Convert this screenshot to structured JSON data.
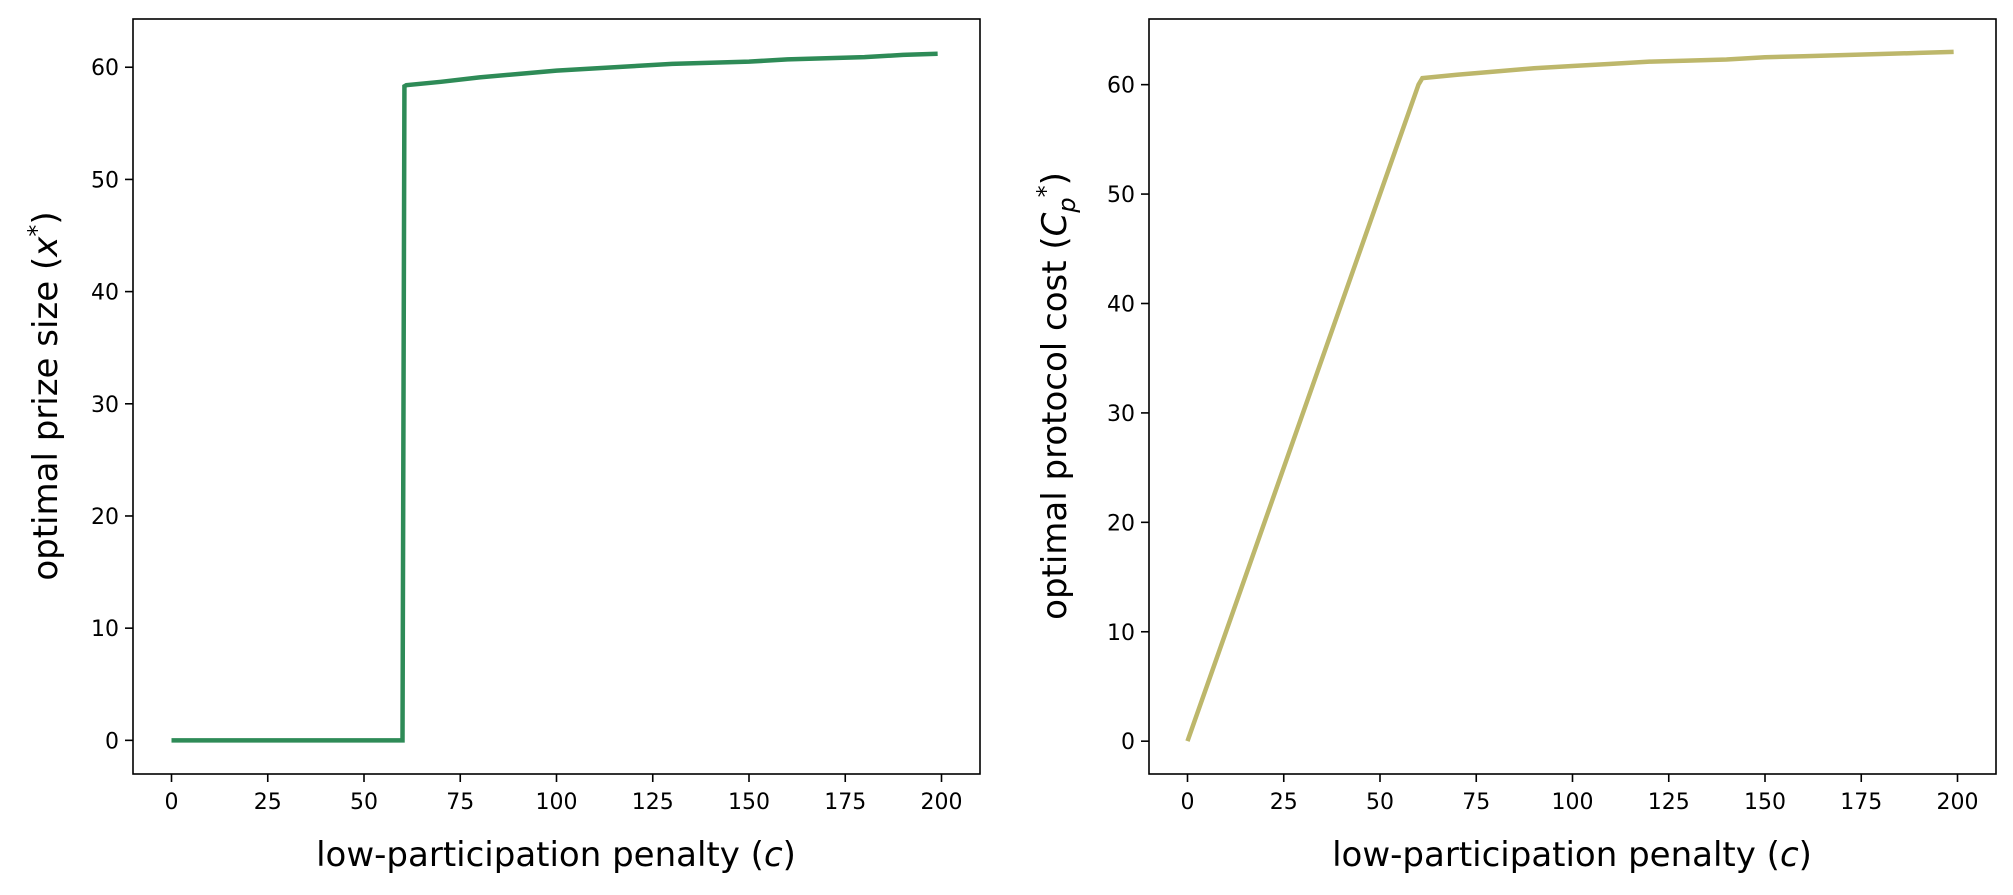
{
  "chart_data": [
    {
      "type": "line",
      "xlabel": "low-participation penalty (c)",
      "ylabel": "optimal prize size (x*)",
      "xlim": [
        -10,
        210
      ],
      "ylim": [
        -3,
        64.3
      ],
      "xticks": [
        0,
        25,
        50,
        75,
        100,
        125,
        150,
        175,
        200
      ],
      "yticks": [
        0,
        10,
        20,
        30,
        40,
        50,
        60
      ],
      "grid": false,
      "colors": {
        "line": "#2e8b57"
      },
      "series": [
        {
          "x": [
            0,
            60,
            60.5,
            61,
            70,
            80,
            90,
            100,
            110,
            120,
            130,
            140,
            150,
            160,
            170,
            180,
            190,
            199
          ],
          "y": [
            0,
            0,
            58.3,
            58.4,
            58.7,
            59.1,
            59.4,
            59.7,
            59.9,
            60.1,
            60.3,
            60.4,
            60.5,
            60.7,
            60.8,
            60.9,
            61.1,
            61.2
          ]
        }
      ]
    },
    {
      "type": "line",
      "xlabel": "low-participation penalty (c)",
      "ylabel": "optimal protocol cost (Cp*)",
      "xlim": [
        -10,
        210
      ],
      "ylim": [
        -3,
        66
      ],
      "xticks": [
        0,
        25,
        50,
        75,
        100,
        125,
        150,
        175,
        200
      ],
      "yticks": [
        0,
        10,
        20,
        30,
        40,
        50,
        60
      ],
      "grid": false,
      "colors": {
        "line": "#bdb76b"
      },
      "series": [
        {
          "x": [
            0,
            60,
            61,
            70,
            80,
            90,
            100,
            110,
            120,
            130,
            140,
            150,
            160,
            170,
            180,
            190,
            199
          ],
          "y": [
            0,
            60.0,
            60.6,
            60.9,
            61.2,
            61.5,
            61.7,
            61.9,
            62.1,
            62.2,
            62.3,
            62.5,
            62.6,
            62.7,
            62.8,
            62.9,
            63.0
          ]
        }
      ]
    }
  ]
}
